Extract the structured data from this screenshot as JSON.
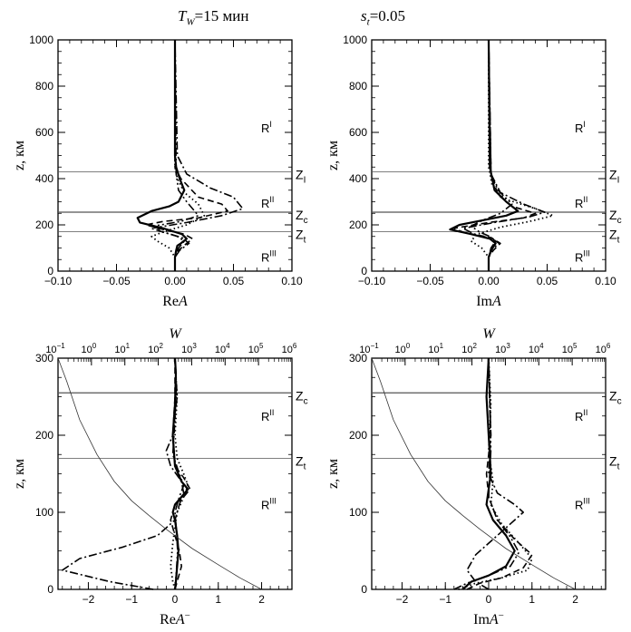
{
  "header": {
    "tw_symbol": "T",
    "tw_sub": "W",
    "tw_value": "=15 мин",
    "st_symbol": "s",
    "st_sub": "t",
    "st_value": "=0.05"
  },
  "chart_data": [
    {
      "type": "line",
      "xlabel_main": "Re",
      "xlabel_italic": "A",
      "xlabel_sup": "",
      "ylabel": "z, км",
      "xlim": [
        -0.1,
        0.1
      ],
      "ylim": [
        0,
        1000
      ],
      "xticks": [
        -0.1,
        -0.05,
        0,
        0.05,
        0.1
      ],
      "xtick_labels": [
        "−0.10",
        "−0.05",
        "0.00",
        "0.05",
        "0.10"
      ],
      "yticks": [
        0,
        200,
        400,
        600,
        800,
        1000
      ],
      "ytick_labels": [
        "0",
        "200",
        "400",
        "600",
        "800",
        "1000"
      ],
      "hlines": [
        {
          "name": "Z_I",
          "y": 430,
          "label": "Z",
          "sub": "I"
        },
        {
          "name": "Z_c",
          "y": 255,
          "label": "Z",
          "sub": "c"
        },
        {
          "name": "Z_t",
          "y": 170,
          "label": "Z",
          "sub": "t"
        }
      ],
      "regions": [
        {
          "label": "R",
          "sup": "I",
          "y": 620
        },
        {
          "label": "R",
          "sup": "II",
          "y": 295
        },
        {
          "label": "R",
          "sup": "III",
          "y": 60
        }
      ],
      "series": [
        {
          "name": "solid",
          "style": "solid",
          "x": [
            0,
            0,
            0.001,
            0.002,
            0.005,
            0.01,
            0.006,
            -0.01,
            -0.03,
            -0.032,
            -0.02,
            -0.005,
            0.003,
            0.008,
            0.004,
            0.001,
            0,
            0
          ],
          "y": [
            0,
            60,
            90,
            110,
            120,
            140,
            160,
            185,
            210,
            230,
            260,
            280,
            300,
            350,
            400,
            450,
            500,
            1000
          ]
        },
        {
          "name": "dashed",
          "style": "dashed",
          "x": [
            0,
            0,
            0.003,
            0.01,
            0.015,
            0.008,
            -0.01,
            -0.025,
            -0.01,
            0.02,
            0.045,
            0.04,
            0.02,
            0.005,
            0,
            0
          ],
          "y": [
            0,
            60,
            90,
            120,
            140,
            160,
            180,
            200,
            215,
            230,
            260,
            290,
            320,
            400,
            450,
            1000
          ]
        },
        {
          "name": "dotted",
          "style": "dotted",
          "x": [
            0,
            0,
            -0.005,
            -0.015,
            -0.02,
            -0.01,
            0.01,
            0.025,
            0.02,
            0.008,
            0.002,
            0,
            0
          ],
          "y": [
            0,
            60,
            100,
            130,
            150,
            170,
            200,
            240,
            290,
            340,
            400,
            450,
            1000
          ]
        },
        {
          "name": "dashdot",
          "style": "dashdot",
          "x": [
            0,
            0,
            0.004,
            0.012,
            0.006,
            -0.008,
            -0.02,
            0.01,
            0.04,
            0.058,
            0.05,
            0.03,
            0.01,
            0.002,
            0
          ],
          "y": [
            0,
            60,
            90,
            120,
            145,
            165,
            185,
            210,
            240,
            270,
            320,
            360,
            420,
            500,
            1000
          ]
        },
        {
          "name": "dashdotdot",
          "style": "dashdotdot",
          "x": [
            0,
            0,
            0.003,
            0.008,
            0.002,
            -0.01,
            -0.018,
            0.005,
            0.02,
            0.01,
            0.003,
            0.001,
            0
          ],
          "y": [
            0,
            60,
            100,
            130,
            150,
            170,
            195,
            215,
            240,
            300,
            350,
            420,
            1000
          ]
        }
      ]
    },
    {
      "type": "line",
      "xlabel_main": "Im",
      "xlabel_italic": "A",
      "xlabel_sup": "",
      "ylabel": "z, км",
      "xlim": [
        -0.1,
        0.1
      ],
      "ylim": [
        0,
        1000
      ],
      "xticks": [
        -0.1,
        -0.05,
        0,
        0.05,
        0.1
      ],
      "xtick_labels": [
        "−0.10",
        "−0.05",
        "0.00",
        "0.05",
        "0.10"
      ],
      "yticks": [
        0,
        200,
        400,
        600,
        800,
        1000
      ],
      "ytick_labels": [
        "0",
        "200",
        "400",
        "600",
        "800",
        "1000"
      ],
      "hlines": [
        {
          "name": "Z_I",
          "y": 430,
          "label": "Z",
          "sub": "I"
        },
        {
          "name": "Z_c",
          "y": 255,
          "label": "Z",
          "sub": "c"
        },
        {
          "name": "Z_t",
          "y": 170,
          "label": "Z",
          "sub": "t"
        }
      ],
      "regions": [
        {
          "label": "R",
          "sup": "I",
          "y": 620
        },
        {
          "label": "R",
          "sup": "II",
          "y": 295
        },
        {
          "label": "R",
          "sup": "III",
          "y": 60
        }
      ],
      "series": [
        {
          "name": "solid",
          "style": "solid",
          "x": [
            0,
            0,
            0.002,
            0.006,
            0.001,
            -0.015,
            -0.033,
            -0.025,
            -0.005,
            0.015,
            0.025,
            0.015,
            0.005,
            0.001,
            0
          ],
          "y": [
            0,
            60,
            90,
            120,
            140,
            160,
            180,
            200,
            220,
            240,
            260,
            300,
            350,
            450,
            1000
          ]
        },
        {
          "name": "dashed",
          "style": "dashed",
          "x": [
            0,
            0,
            0.004,
            0.01,
            0.002,
            -0.02,
            -0.03,
            0,
            0.03,
            0.04,
            0.02,
            0.008,
            0.002,
            0
          ],
          "y": [
            0,
            60,
            90,
            120,
            145,
            165,
            185,
            210,
            230,
            250,
            280,
            330,
            420,
            1000
          ]
        },
        {
          "name": "dotted",
          "style": "dotted",
          "x": [
            0,
            0,
            -0.006,
            -0.015,
            -0.01,
            0.01,
            0.035,
            0.055,
            0.04,
            0.015,
            0.003,
            0,
            0
          ],
          "y": [
            0,
            60,
            100,
            130,
            160,
            190,
            215,
            240,
            270,
            310,
            370,
            450,
            1000
          ]
        },
        {
          "name": "dashdot",
          "style": "dashdot",
          "x": [
            0,
            0,
            0.003,
            0.009,
            0.003,
            -0.012,
            -0.022,
            0.005,
            0.035,
            0.048,
            0.03,
            0.01,
            0.002,
            0
          ],
          "y": [
            0,
            60,
            95,
            120,
            140,
            160,
            185,
            210,
            235,
            255,
            290,
            340,
            420,
            1000
          ]
        },
        {
          "name": "dashdotdot",
          "style": "dashdotdot",
          "x": [
            0,
            0,
            0.002,
            0.006,
            0.001,
            -0.008,
            -0.015,
            -0.005,
            0.01,
            0.02,
            0.008,
            0.002,
            0
          ],
          "y": [
            0,
            60,
            100,
            130,
            150,
            170,
            195,
            220,
            250,
            290,
            350,
            420,
            1000
          ]
        }
      ]
    },
    {
      "type": "line",
      "xlabel_main": "Re",
      "xlabel_italic": "A",
      "xlabel_sup": "−",
      "ylabel": "z, км",
      "top_label": "W",
      "xlim": [
        -2.7,
        2.7
      ],
      "ylim": [
        0,
        300
      ],
      "xticks": [
        -2,
        -1,
        0,
        1,
        2
      ],
      "xtick_labels": [
        "−2",
        "−1",
        "0",
        "1",
        "2"
      ],
      "yticks": [
        0,
        100,
        200,
        300
      ],
      "ytick_labels": [
        "0",
        "100",
        "200",
        "300"
      ],
      "top_ticks": [
        {
          "b": "10",
          "e": "−1"
        },
        {
          "b": "10",
          "e": "0"
        },
        {
          "b": "10",
          "e": "1"
        },
        {
          "b": "10",
          "e": "2"
        },
        {
          "b": "10",
          "e": "3"
        },
        {
          "b": "10",
          "e": "4"
        },
        {
          "b": "10",
          "e": "5"
        },
        {
          "b": "10",
          "e": "6"
        }
      ],
      "top_range": [
        -1,
        6
      ],
      "hlines": [
        {
          "name": "Z_c",
          "y": 255,
          "label": "Z",
          "sub": "c"
        },
        {
          "name": "Z_t",
          "y": 170,
          "label": "Z",
          "sub": "t"
        }
      ],
      "regions": [
        {
          "label": "R",
          "sup": "II",
          "y": 225
        },
        {
          "label": "R",
          "sup": "III",
          "y": 110
        }
      ],
      "series": [
        {
          "name": "solid",
          "style": "solid",
          "x": [
            0,
            0.02,
            0.05,
            0.08,
            0.05,
            0,
            -0.05,
            0,
            0.15,
            0.3,
            0.15,
            0,
            -0.05,
            0,
            0.02,
            0
          ],
          "y": [
            0,
            10,
            30,
            50,
            70,
            90,
            100,
            110,
            120,
            130,
            140,
            160,
            200,
            240,
            280,
            300
          ]
        },
        {
          "name": "dashed",
          "style": "dashed",
          "x": [
            0,
            0.05,
            0.15,
            0.1,
            0,
            -0.1,
            0,
            0.2,
            0.35,
            0.2,
            0,
            -0.05,
            0,
            0
          ],
          "y": [
            0,
            10,
            30,
            50,
            70,
            90,
            110,
            120,
            130,
            145,
            160,
            200,
            250,
            300
          ]
        },
        {
          "name": "dotted",
          "style": "dotted",
          "x": [
            0,
            -0.05,
            -0.1,
            -0.05,
            0,
            0.05,
            0.2,
            0.3,
            0.2,
            0.05,
            0,
            0.05,
            0
          ],
          "y": [
            0,
            10,
            30,
            60,
            80,
            100,
            120,
            135,
            150,
            170,
            200,
            250,
            300
          ]
        },
        {
          "name": "dashdot",
          "style": "dashdot",
          "x": [
            -0.5,
            -1.5,
            -2.6,
            -2.2,
            -1.2,
            -0.4,
            0,
            0.1,
            0.2,
            0.15,
            -0.1,
            -0.2,
            -0.05,
            0.05,
            0
          ],
          "y": [
            0,
            10,
            25,
            40,
            55,
            70,
            90,
            110,
            125,
            140,
            160,
            180,
            200,
            250,
            300
          ]
        },
        {
          "name": "dashdotdot",
          "style": "dashdotdot",
          "x": [
            0,
            0.03,
            0.06,
            0.03,
            0,
            0.1,
            0.2,
            0.1,
            -0.05,
            0,
            0.03,
            0
          ],
          "y": [
            0,
            20,
            50,
            80,
            100,
            120,
            135,
            150,
            175,
            220,
            260,
            300
          ]
        },
        {
          "name": "W",
          "style": "thin",
          "x": [
            2.0,
            1.5,
            1.0,
            0.4,
            -0.2,
            -0.6,
            -1.0,
            -1.4,
            -1.8,
            -2.2,
            -2.5,
            -2.7
          ],
          "y": [
            0,
            15,
            32,
            53,
            78,
            96,
            115,
            140,
            175,
            220,
            270,
            300
          ]
        }
      ]
    },
    {
      "type": "line",
      "xlabel_main": "Im",
      "xlabel_italic": "A",
      "xlabel_sup": "−",
      "ylabel": "z, км",
      "top_label": "W",
      "xlim": [
        -2.7,
        2.7
      ],
      "ylim": [
        0,
        300
      ],
      "xticks": [
        -2,
        -1,
        0,
        1,
        2
      ],
      "xtick_labels": [
        "−2",
        "−1",
        "0",
        "1",
        "2"
      ],
      "yticks": [
        0,
        100,
        200,
        300
      ],
      "ytick_labels": [
        "0",
        "100",
        "200",
        "300"
      ],
      "top_ticks": [
        {
          "b": "10",
          "e": "−1"
        },
        {
          "b": "10",
          "e": "0"
        },
        {
          "b": "10",
          "e": "1"
        },
        {
          "b": "10",
          "e": "2"
        },
        {
          "b": "10",
          "e": "3"
        },
        {
          "b": "10",
          "e": "4"
        },
        {
          "b": "10",
          "e": "5"
        },
        {
          "b": "10",
          "e": "6"
        }
      ],
      "top_range": [
        -1,
        6
      ],
      "hlines": [
        {
          "name": "Z_c",
          "y": 255,
          "label": "Z",
          "sub": "c"
        },
        {
          "name": "Z_t",
          "y": 170,
          "label": "Z",
          "sub": "t"
        }
      ],
      "regions": [
        {
          "label": "R",
          "sup": "II",
          "y": 225
        },
        {
          "label": "R",
          "sup": "III",
          "y": 110
        }
      ],
      "series": [
        {
          "name": "solid",
          "style": "solid",
          "x": [
            -0.6,
            -0.4,
            0,
            0.4,
            0.6,
            0.4,
            0.1,
            -0.05,
            0,
            0.05,
            0,
            -0.05,
            0
          ],
          "y": [
            0,
            10,
            18,
            30,
            50,
            70,
            90,
            110,
            130,
            150,
            200,
            250,
            300
          ]
        },
        {
          "name": "dashed",
          "style": "dashed",
          "x": [
            -0.5,
            -0.2,
            0.3,
            0.8,
            1.0,
            0.6,
            0.2,
            0,
            -0.05,
            0.05,
            0
          ],
          "y": [
            0,
            8,
            15,
            28,
            45,
            65,
            90,
            120,
            150,
            200,
            300
          ]
        },
        {
          "name": "dotted",
          "style": "dotted",
          "x": [
            -0.7,
            -0.3,
            0.3,
            0.9,
            1.0,
            0.7,
            0.3,
            0.05,
            0.1,
            0,
            0.05,
            0
          ],
          "y": [
            0,
            8,
            15,
            25,
            40,
            60,
            85,
            110,
            140,
            180,
            240,
            300
          ]
        },
        {
          "name": "dashdot",
          "style": "dashdot",
          "x": [
            0,
            -0.3,
            -0.5,
            -0.3,
            0.1,
            0.5,
            0.8,
            0.6,
            0.2,
            0,
            0.05,
            0
          ],
          "y": [
            0,
            10,
            25,
            45,
            65,
            85,
            100,
            110,
            125,
            150,
            200,
            300
          ]
        },
        {
          "name": "dashdotdot",
          "style": "dashdotdot",
          "x": [
            -0.8,
            -0.5,
            0,
            0.5,
            0.7,
            0.5,
            0.2,
            0,
            0.05,
            0
          ],
          "y": [
            0,
            8,
            18,
            30,
            48,
            68,
            90,
            120,
            180,
            300
          ]
        },
        {
          "name": "W",
          "style": "thin",
          "x": [
            2.0,
            1.5,
            1.0,
            0.4,
            -0.2,
            -0.6,
            -1.0,
            -1.4,
            -1.8,
            -2.2,
            -2.5,
            -2.7
          ],
          "y": [
            0,
            15,
            32,
            53,
            78,
            96,
            115,
            140,
            175,
            220,
            270,
            300
          ]
        }
      ]
    }
  ]
}
